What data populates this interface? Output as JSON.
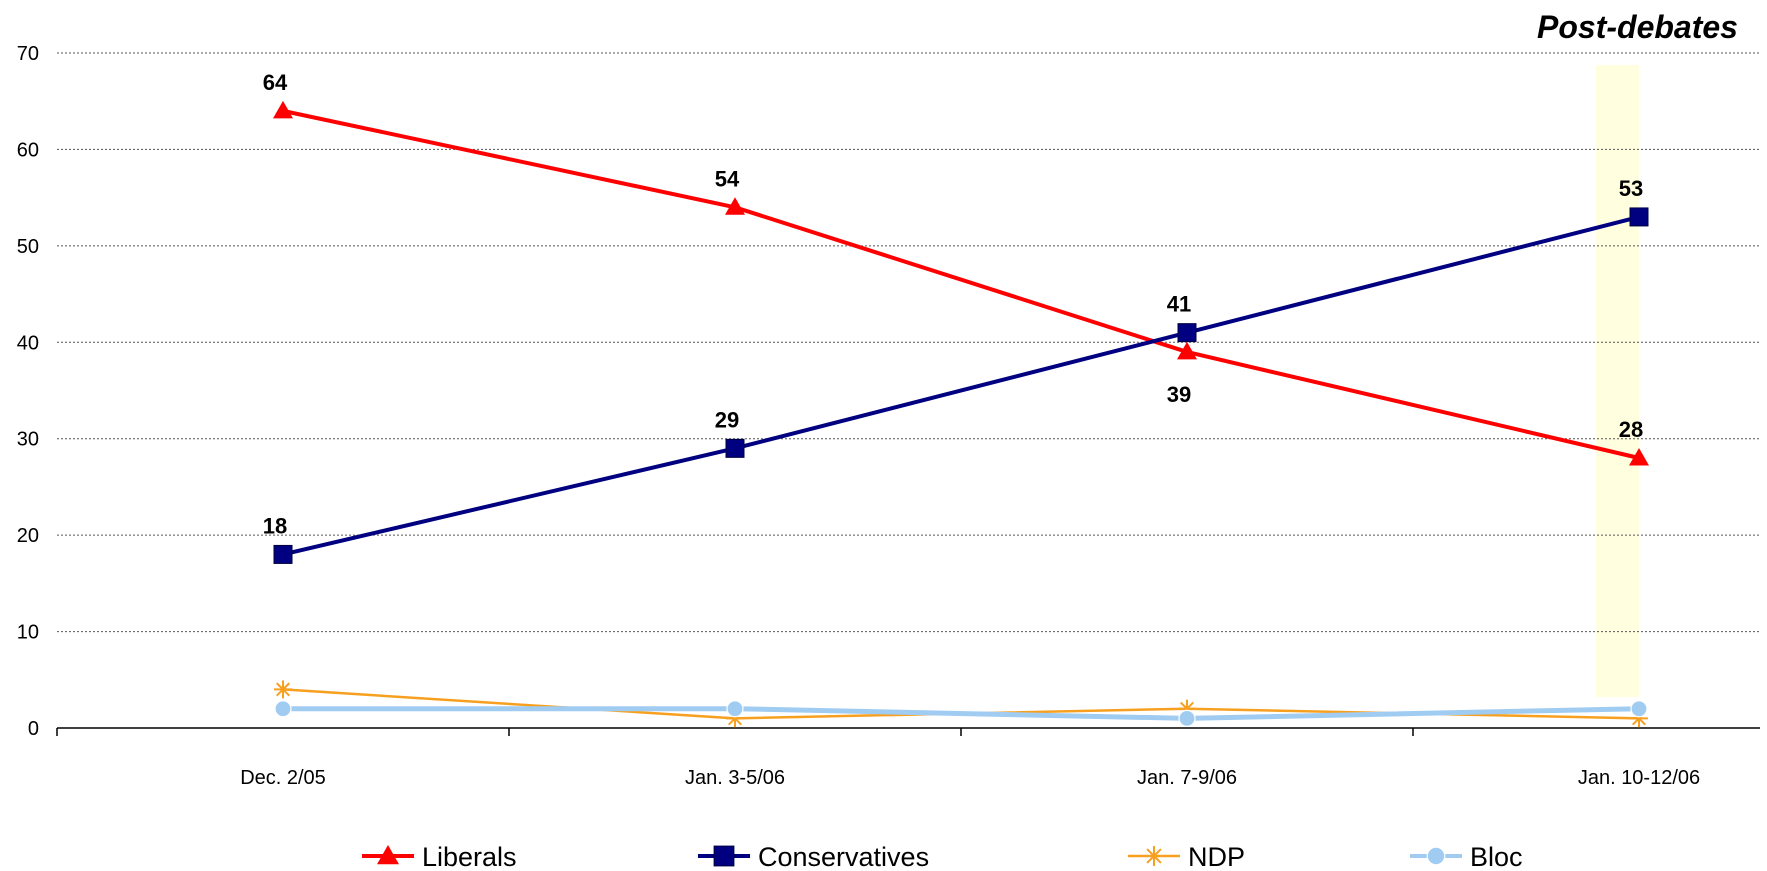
{
  "chart_data": {
    "type": "line",
    "title": "",
    "xlabel": "",
    "ylabel": "",
    "ylim": [
      0,
      70
    ],
    "yticks": [
      0,
      10,
      20,
      30,
      40,
      50,
      60,
      70
    ],
    "grid": true,
    "legend_position": "bottom",
    "categories": [
      "Dec. 2/05",
      "Jan. 3-5/06",
      "Jan. 7-9/06",
      "Jan. 10-12/06"
    ],
    "highlight": {
      "label": "Post-debates",
      "from_category": "Jan. 7-9/06",
      "to_category": "Jan. 10-12/06",
      "color": "#ffffe0"
    },
    "series": [
      {
        "name": "Liberals",
        "values": [
          64,
          54,
          39,
          28
        ],
        "color": "#ff0000",
        "marker": "triangle",
        "labels": [
          "64",
          "54",
          "39",
          "28"
        ]
      },
      {
        "name": "Conservatives",
        "values": [
          18,
          29,
          41,
          53
        ],
        "color": "#000080",
        "marker": "square",
        "labels": [
          "18",
          "29",
          "41",
          "53"
        ]
      },
      {
        "name": "NDP",
        "values": [
          4,
          1,
          2,
          1
        ],
        "color": "#f7a020",
        "marker": "star"
      },
      {
        "name": "Bloc",
        "values": [
          2,
          2,
          1,
          2
        ],
        "color": "#a0ccf2",
        "marker": "circle"
      }
    ]
  }
}
